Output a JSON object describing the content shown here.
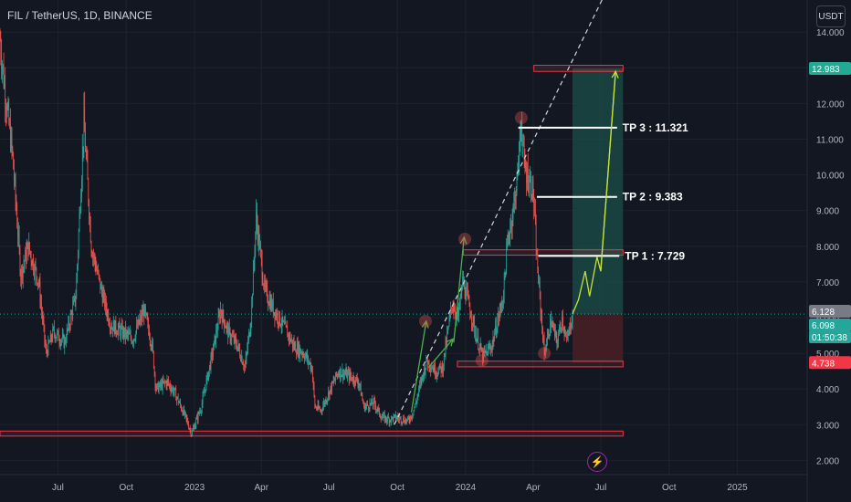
{
  "header": {
    "ticker": "FIL / TetherUS, 1D, BINANCE",
    "unit_button": "USDT",
    "bolt_icon": "lightning-bolt-icon"
  },
  "colors": {
    "background": "#131722",
    "up": "#26a69a",
    "down": "#ef5350",
    "zone": "#f23645",
    "profit_zone": "#1b4f4a",
    "loss_zone": "#4a1e25",
    "target_label": "#22ab94",
    "stop_label": "#f23645",
    "current_label": "#787b86"
  },
  "chart_data": {
    "type": "candlestick",
    "y_axis": {
      "ticks": [
        "14.000",
        "13.000",
        "12.000",
        "11.000",
        "10.000",
        "9.000",
        "8.000",
        "7.000",
        "6.000",
        "5.000",
        "4.000",
        "3.000",
        "2.000"
      ],
      "range": [
        1.6,
        14.9
      ]
    },
    "x_axis": {
      "ticks": [
        "Jul",
        "Oct",
        "2023",
        "Apr",
        "Jul",
        "Oct",
        "2024",
        "Apr",
        "Jul",
        "Oct",
        "2025"
      ],
      "range": [
        "2022-04-14",
        "2025-04-05"
      ]
    },
    "price_labels": [
      {
        "text": "12.983",
        "value": 12.983,
        "kind": "target"
      },
      {
        "text": "6.128",
        "value": 6.128,
        "kind": "current"
      },
      {
        "text": "6.098",
        "value": 6.098,
        "kind": "last"
      },
      {
        "text": "01:50:38",
        "value": null,
        "kind": "countdown"
      },
      {
        "text": "4.738",
        "value": 4.738,
        "kind": "stop"
      }
    ],
    "annotations": [
      {
        "text": "TP 3 : 11.321",
        "value": 11.321,
        "x_from": "2024-03-12",
        "x_to": "2024-07-23"
      },
      {
        "text": "TP 2 : 9.383",
        "value": 9.383,
        "x_from": "2024-04-06",
        "x_to": "2024-07-23"
      },
      {
        "text": "TP 1 : 7.729",
        "value": 7.729,
        "x_from": "2024-04-08",
        "x_to": "2024-07-26"
      }
    ],
    "zones": [
      {
        "name": "support",
        "from": 2.68,
        "to": 2.82,
        "x_from": "2022-04-14",
        "x_to": "2024-07-31"
      },
      {
        "name": "demand",
        "from": 4.62,
        "to": 4.78,
        "x_from": "2023-12-21",
        "x_to": "2024-07-31"
      },
      {
        "name": "resistance",
        "from": 7.75,
        "to": 7.9,
        "x_from": "2023-12-29",
        "x_to": "2024-07-31"
      },
      {
        "name": "target",
        "from": 12.9,
        "to": 13.07,
        "x_from": "2024-04-02",
        "x_to": "2024-07-31"
      }
    ],
    "position": {
      "entry": 6.098,
      "target": 12.983,
      "stop": 4.738,
      "x_from": "2024-05-24",
      "x_to": "2024-07-31"
    },
    "trendline": {
      "from": {
        "x": "2023-09-27",
        "y": 3.0
      },
      "to": {
        "x": "2024-07-05",
        "y": 15.0
      }
    },
    "price_path": [
      [
        "2022-04-14",
        13.8
      ],
      [
        "2022-04-20",
        12.5
      ],
      [
        "2022-05-01",
        10.5
      ],
      [
        "2022-05-12",
        7.2
      ],
      [
        "2022-05-22",
        8.0
      ],
      [
        "2022-06-05",
        7.0
      ],
      [
        "2022-06-15",
        5.0
      ],
      [
        "2022-06-25",
        5.6
      ],
      [
        "2022-07-10",
        5.3
      ],
      [
        "2022-07-25",
        6.6
      ],
      [
        "2022-08-05",
        11.5
      ],
      [
        "2022-08-15",
        8.0
      ],
      [
        "2022-08-28",
        6.8
      ],
      [
        "2022-09-10",
        5.8
      ],
      [
        "2022-09-25",
        5.6
      ],
      [
        "2022-10-10",
        5.4
      ],
      [
        "2022-10-25",
        6.2
      ],
      [
        "2022-11-05",
        5.2
      ],
      [
        "2022-11-10",
        4.0
      ],
      [
        "2022-11-25",
        4.2
      ],
      [
        "2022-12-05",
        3.9
      ],
      [
        "2022-12-20",
        3.2
      ],
      [
        "2022-12-28",
        2.75
      ],
      [
        "2023-01-10",
        3.5
      ],
      [
        "2023-01-25",
        5.0
      ],
      [
        "2023-02-05",
        6.2
      ],
      [
        "2023-02-15",
        5.6
      ],
      [
        "2023-02-28",
        5.2
      ],
      [
        "2023-03-10",
        4.6
      ],
      [
        "2023-03-18",
        6.0
      ],
      [
        "2023-03-25",
        8.8
      ],
      [
        "2023-04-05",
        6.8
      ],
      [
        "2023-04-18",
        6.2
      ],
      [
        "2023-04-30",
        5.8
      ],
      [
        "2023-05-15",
        5.2
      ],
      [
        "2023-05-28",
        5.0
      ],
      [
        "2023-06-08",
        4.6
      ],
      [
        "2023-06-12",
        3.5
      ],
      [
        "2023-06-20",
        3.4
      ],
      [
        "2023-07-01",
        3.9
      ],
      [
        "2023-07-14",
        4.5
      ],
      [
        "2023-07-25",
        4.4
      ],
      [
        "2023-08-10",
        4.2
      ],
      [
        "2023-08-17",
        3.5
      ],
      [
        "2023-08-31",
        3.6
      ],
      [
        "2023-09-10",
        3.2
      ],
      [
        "2023-09-20",
        3.15
      ],
      [
        "2023-10-01",
        3.2
      ],
      [
        "2023-10-15",
        3.1
      ],
      [
        "2023-10-21",
        3.3
      ],
      [
        "2023-10-26",
        3.6
      ],
      [
        "2023-11-03",
        4.3
      ],
      [
        "2023-11-10",
        4.8
      ],
      [
        "2023-11-22",
        4.5
      ],
      [
        "2023-12-01",
        4.6
      ],
      [
        "2023-12-08",
        5.6
      ],
      [
        "2023-12-14",
        6.4
      ],
      [
        "2023-12-22",
        6.0
      ],
      [
        "2023-12-28",
        7.0
      ],
      [
        "2024-01-05",
        6.4
      ],
      [
        "2024-01-15",
        5.5
      ],
      [
        "2024-01-24",
        4.9
      ],
      [
        "2024-02-05",
        5.2
      ],
      [
        "2024-02-20",
        6.5
      ],
      [
        "2024-02-27",
        8.2
      ],
      [
        "2024-03-05",
        9.0
      ],
      [
        "2024-03-11",
        10.0
      ],
      [
        "2024-03-16",
        11.6
      ],
      [
        "2024-03-20",
        10.2
      ],
      [
        "2024-03-28",
        9.8
      ],
      [
        "2024-04-01",
        9.5
      ],
      [
        "2024-04-06",
        7.6
      ],
      [
        "2024-04-12",
        6.0
      ],
      [
        "2024-04-16",
        5.0
      ],
      [
        "2024-04-25",
        5.9
      ],
      [
        "2024-05-03",
        5.3
      ],
      [
        "2024-05-10",
        6.0
      ],
      [
        "2024-05-16",
        5.3
      ],
      [
        "2024-05-24",
        6.1
      ]
    ],
    "labels": {
      "title": "FIL / TetherUS, 1D, BINANCE",
      "xlabel": "",
      "ylabel": "USDT"
    },
    "grid": true,
    "legend": "none"
  }
}
